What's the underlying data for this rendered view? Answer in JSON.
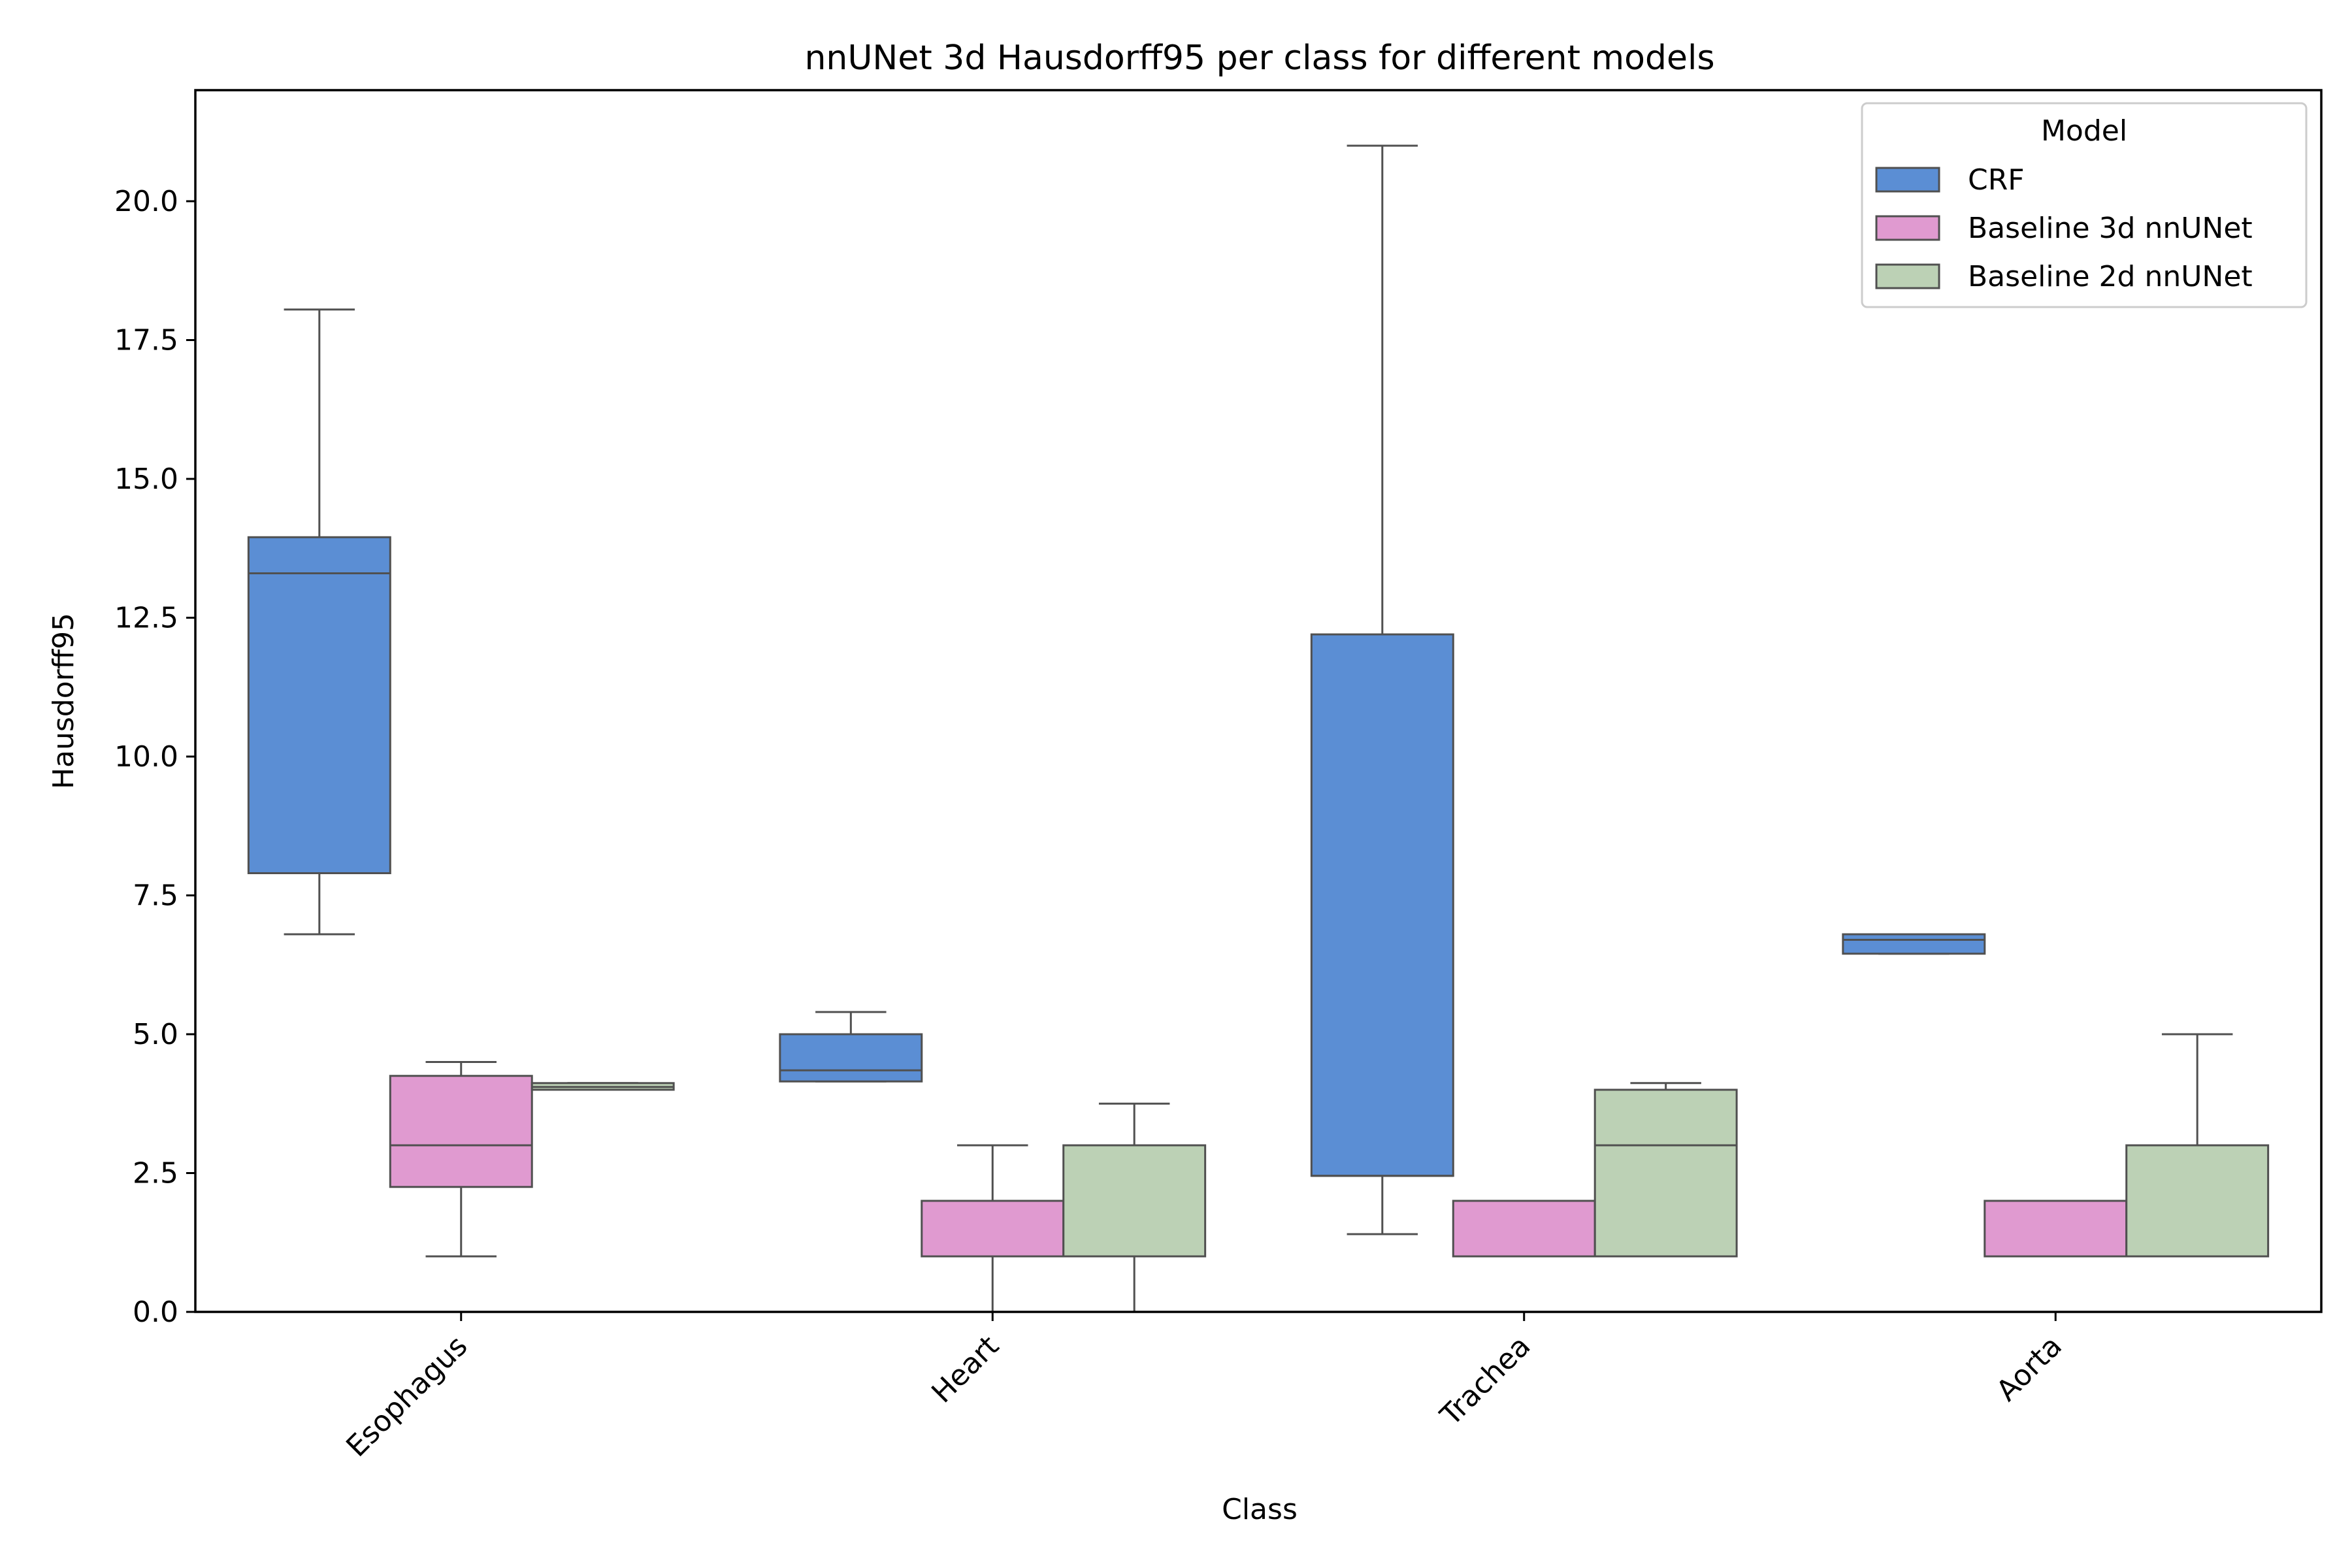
{
  "chart_data": {
    "type": "box",
    "title": "nnUNet 3d Hausdorff95 per class for different models",
    "xlabel": "Class",
    "ylabel": "Hausdorff95",
    "categories": [
      "Esophagus",
      "Heart",
      "Trachea",
      "Aorta"
    ],
    "ylim": [
      0,
      22
    ],
    "yticks": [
      "0.0",
      "2.5",
      "5.0",
      "7.5",
      "10.0",
      "12.5",
      "15.0",
      "17.5",
      "20.0"
    ],
    "grid": false,
    "legend": {
      "title": "Model",
      "placement": "top-right"
    },
    "series": [
      {
        "name": "CRF",
        "color": "#5b8ed4",
        "boxes": [
          {
            "whislo": 6.8,
            "q1": 7.9,
            "med": 13.3,
            "q3": 13.95,
            "whishi": 18.05
          },
          {
            "whislo": 4.15,
            "q1": 4.15,
            "med": 4.35,
            "q3": 5.0,
            "whishi": 5.4
          },
          {
            "whislo": 1.4,
            "q1": 2.45,
            "med": 2.45,
            "q3": 12.2,
            "whishi": 21.0
          },
          {
            "whislo": 6.45,
            "q1": 6.45,
            "med": 6.7,
            "q3": 6.8,
            "whishi": 6.8
          }
        ]
      },
      {
        "name": "Baseline 3d nnUNet",
        "color": "#e09ad0",
        "boxes": [
          {
            "whislo": 1.0,
            "q1": 2.25,
            "med": 3.0,
            "q3": 4.25,
            "whishi": 4.5
          },
          {
            "whislo": 0.0,
            "q1": 1.0,
            "med": 1.0,
            "q3": 2.0,
            "whishi": 3.0
          },
          {
            "whislo": 1.0,
            "q1": 1.0,
            "med": 1.0,
            "q3": 2.0,
            "whishi": 2.0
          },
          {
            "whislo": 1.0,
            "q1": 1.0,
            "med": 1.0,
            "q3": 2.0,
            "whishi": 2.0
          }
        ]
      },
      {
        "name": "Baseline 2d nnUNet",
        "color": "#bcd1b5",
        "boxes": [
          {
            "whislo": 4.0,
            "q1": 4.0,
            "med": 4.05,
            "q3": 4.12,
            "whishi": 4.12
          },
          {
            "whislo": 0.0,
            "q1": 1.0,
            "med": 1.0,
            "q3": 3.0,
            "whishi": 3.75
          },
          {
            "whislo": 1.0,
            "q1": 1.0,
            "med": 3.0,
            "q3": 4.0,
            "whishi": 4.12
          },
          {
            "whislo": 1.0,
            "q1": 1.0,
            "med": 1.0,
            "q3": 3.0,
            "whishi": 5.0
          }
        ]
      }
    ]
  }
}
